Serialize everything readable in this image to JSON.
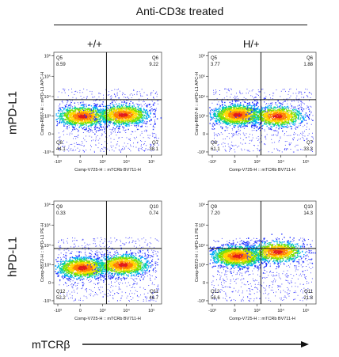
{
  "header": {
    "title": "Anti-CD3ε treated",
    "col_labels": [
      "+/+",
      "H/+"
    ]
  },
  "rows": [
    {
      "label": "mPD-L1"
    },
    {
      "label": "hPD-L1"
    }
  ],
  "x_footer_label": "mTCRβ",
  "colors": {
    "axis": "#111111",
    "text": "#111111"
  },
  "chart_data": [
    {
      "type": "scatter",
      "genotype": "+/+",
      "xlabel": "Comp-V725-H :: mTCRb BV711-H",
      "ylabel": "Comp-R667-H :: mPD-L1 APC-H",
      "x_ticks": [
        "-10³",
        "0",
        "10³",
        "10⁴",
        "10⁵"
      ],
      "y_ticks": [
        "-10³",
        "0",
        "10³",
        "10⁴",
        "10⁵",
        "10⁶"
      ],
      "quadrants": [
        {
          "name": "Q5",
          "value": "8.59",
          "pos": "upper-left"
        },
        {
          "name": "Q6",
          "value": "9.22",
          "pos": "upper-right"
        },
        {
          "name": "Q8",
          "value": "44.1",
          "pos": "lower-left"
        },
        {
          "name": "Q7",
          "value": "38.1",
          "pos": "lower-right"
        }
      ],
      "gate": {
        "x": 1500,
        "y": 7000
      },
      "populations": [
        {
          "x": 30,
          "y": 1000,
          "weight": 0.46
        },
        {
          "x": 7000,
          "y": 1200,
          "weight": 0.44
        }
      ]
    },
    {
      "type": "scatter",
      "genotype": "H/+",
      "xlabel": "Comp-V725-H :: mTCRb BV711-H",
      "ylabel": "Comp-R667-H :: mPD-L1 APC-H",
      "x_ticks": [
        "-10³",
        "0",
        "10³",
        "10⁴",
        "10⁵"
      ],
      "y_ticks": [
        "-10³",
        "0",
        "10³",
        "10⁴",
        "10⁵",
        "10⁶"
      ],
      "quadrants": [
        {
          "name": "Q5",
          "value": "3.77",
          "pos": "upper-left"
        },
        {
          "name": "Q6",
          "value": "1.88",
          "pos": "upper-right"
        },
        {
          "name": "Q8",
          "value": "61.1",
          "pos": "lower-left"
        },
        {
          "name": "Q7",
          "value": "33.3",
          "pos": "lower-right"
        }
      ],
      "gate": {
        "x": 1500,
        "y": 7000
      },
      "populations": [
        {
          "x": 40,
          "y": 1200,
          "weight": 0.58
        },
        {
          "x": 7000,
          "y": 1000,
          "weight": 0.38
        }
      ]
    },
    {
      "type": "scatter",
      "genotype": "+/+",
      "xlabel": "Comp-V725-H :: mTCRb BV711-H",
      "ylabel": "Comp-B572-H :: hPD-L1 PE-H",
      "x_ticks": [
        "-10³",
        "0",
        "10³",
        "10⁴",
        "10⁵"
      ],
      "y_ticks": [
        "-10³",
        "0",
        "10³",
        "10⁴",
        "10⁵",
        "10⁶"
      ],
      "quadrants": [
        {
          "name": "Q9",
          "value": "0.33",
          "pos": "upper-left"
        },
        {
          "name": "Q10",
          "value": "0.74",
          "pos": "upper-right"
        },
        {
          "name": "Q12",
          "value": "52.2",
          "pos": "lower-left"
        },
        {
          "name": "Q11",
          "value": "46.7",
          "pos": "lower-right"
        }
      ],
      "gate": {
        "x": 1500,
        "y": 7000
      },
      "populations": [
        {
          "x": 30,
          "y": 700,
          "weight": 0.52
        },
        {
          "x": 7000,
          "y": 1000,
          "weight": 0.46
        }
      ]
    },
    {
      "type": "scatter",
      "genotype": "H/+",
      "xlabel": "Comp-V725-H :: mTCRb BV711-H",
      "ylabel": "Comp-B572-H :: hPD-L1 PE-H",
      "x_ticks": [
        "-10³",
        "0",
        "10³",
        "10⁴",
        "10⁵"
      ],
      "y_ticks": [
        "-10³",
        "0",
        "10³",
        "10⁴",
        "10⁵",
        "10⁶"
      ],
      "quadrants": [
        {
          "name": "Q9",
          "value": "7.20",
          "pos": "upper-left"
        },
        {
          "name": "Q10",
          "value": "14.3",
          "pos": "upper-right"
        },
        {
          "name": "Q12",
          "value": "56.6",
          "pos": "lower-left"
        },
        {
          "name": "Q11",
          "value": "21.8",
          "pos": "lower-right"
        }
      ],
      "gate": {
        "x": 1500,
        "y": 7000
      },
      "populations": [
        {
          "x": 40,
          "y": 3000,
          "weight": 0.64
        },
        {
          "x": 7000,
          "y": 5000,
          "weight": 0.36
        }
      ]
    }
  ]
}
